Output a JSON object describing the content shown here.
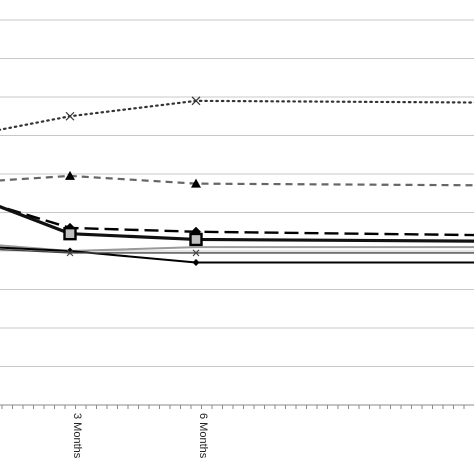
{
  "chart_data": {
    "type": "line",
    "categories": [
      "",
      "3 Months",
      "6 Months",
      ""
    ],
    "ylim": [
      0,
      10
    ],
    "grid": true,
    "legend": "none",
    "series": [
      {
        "values": [
          6.9,
          7.5,
          7.9,
          7.85
        ],
        "style": "dotted",
        "color": "#333333",
        "marker": "x"
      },
      {
        "values": [
          5.75,
          5.95,
          5.75,
          5.7
        ],
        "style": "dashed",
        "color": "#666666",
        "marker": "triangle"
      },
      {
        "values": [
          5.55,
          4.6,
          4.5,
          4.4
        ],
        "style": "long-dash",
        "color": "#000000",
        "marker": "diamond"
      },
      {
        "values": [
          5.65,
          4.45,
          4.3,
          4.25
        ],
        "style": "solid-thick",
        "color": "#111111",
        "marker": "square"
      },
      {
        "values": [
          4.25,
          4.0,
          4.1,
          4.1
        ],
        "style": "solid",
        "color": "#999999",
        "marker": "none"
      },
      {
        "values": [
          4.15,
          4.0,
          3.7,
          3.7
        ],
        "style": "solid",
        "color": "#000000",
        "marker": "diamond-small"
      },
      {
        "values": [
          4.1,
          3.95,
          3.95,
          3.95
        ],
        "style": "solid-thin",
        "color": "#444444",
        "marker": "x-small"
      }
    ]
  }
}
